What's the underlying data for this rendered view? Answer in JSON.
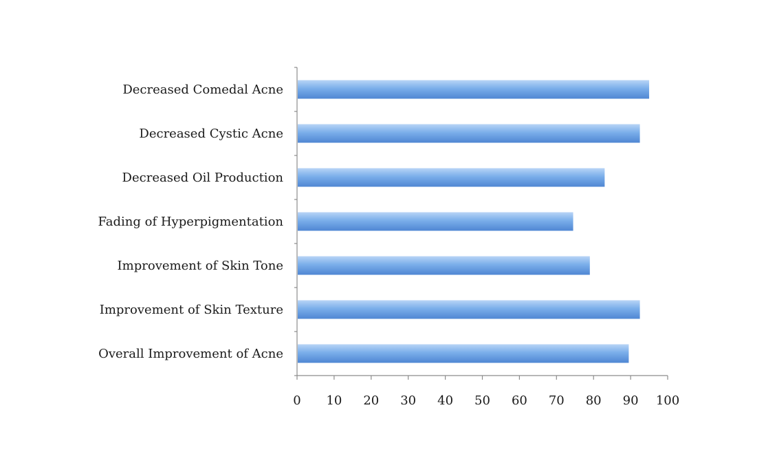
{
  "chart_data": {
    "type": "bar",
    "orientation": "horizontal",
    "categories": [
      "Decreased Comedal Acne",
      "Decreased Cystic Acne",
      "Decreased Oil Production",
      "Fading of Hyperpigmentation",
      "Improvement of Skin Tone",
      "Improvement of Skin Texture",
      "Overall Improvement of Acne"
    ],
    "values": [
      95,
      92.5,
      83,
      74.5,
      79,
      92.5,
      89.5
    ],
    "xlim": [
      0,
      100
    ],
    "xticks": [
      "0",
      "10",
      "20",
      "30",
      "40",
      "50",
      "60",
      "70",
      "80",
      "90",
      "100"
    ],
    "title": "",
    "xlabel": "",
    "ylabel": "",
    "grid": false,
    "legend": "none",
    "bar_color": "#7aaeea",
    "bar_highlight": "#b8d4f6",
    "bar_shadow": "#4f86d3"
  }
}
